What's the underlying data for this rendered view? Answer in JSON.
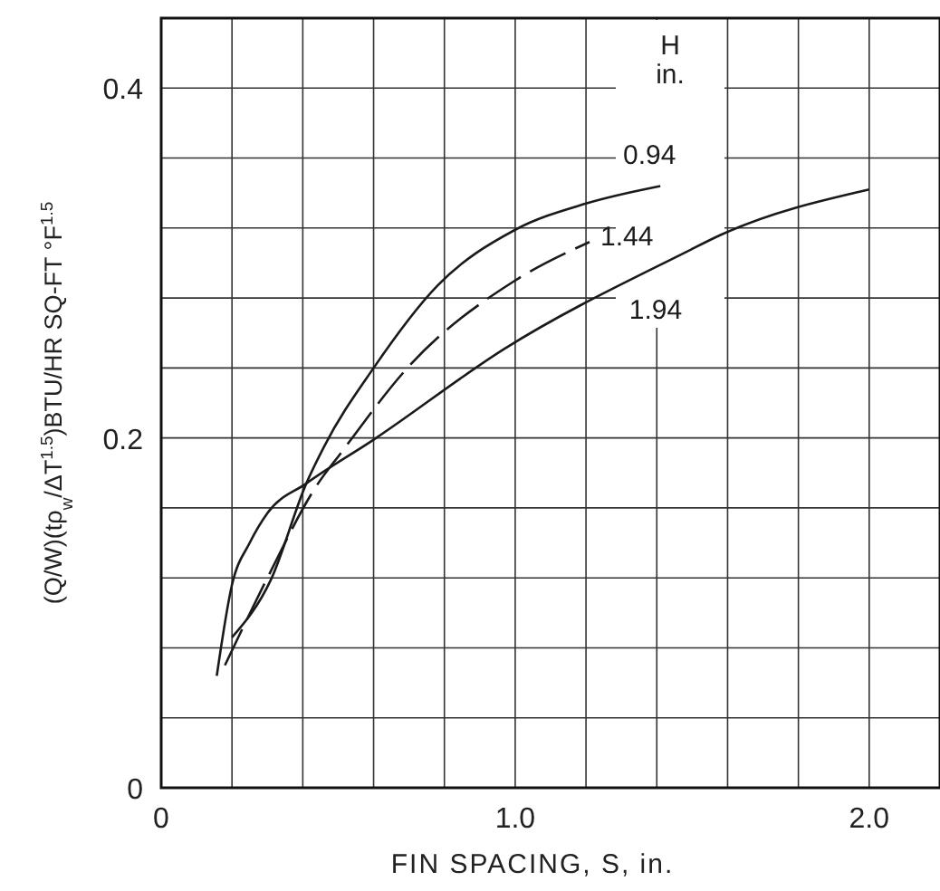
{
  "chart_data": {
    "type": "line",
    "xlabel": "FIN SPACING, S, in.",
    "ylabel": "(Q/W)(tρ$_{w}$/ΔT$^{1.5}$)BTU/HR SQ-FT °F$^{1.5}$",
    "legend_title": "H in.",
    "legend": "top right",
    "grid": true,
    "line_style": "solid",
    "marker": "none",
    "xlim": [
      0,
      2.2
    ],
    "ylim": [
      0,
      0.44
    ],
    "xticks": [
      0,
      {
        "value": 0.2,
        "label": null
      },
      {
        "value": 0.4,
        "label": null
      },
      {
        "value": 0.6,
        "label": null
      },
      {
        "value": 0.8,
        "label": null
      },
      {
        "value": 1.0,
        "label": "1.0"
      },
      {
        "value": 1.2,
        "label": null
      },
      {
        "value": 1.4,
        "label": null
      },
      {
        "value": 1.6,
        "label": null
      },
      {
        "value": 1.8,
        "label": null
      },
      {
        "value": 2.0,
        "label": "2.0"
      },
      {
        "value": 2.2,
        "label": null
      }
    ],
    "yticks": [
      0,
      {
        "value": 0.04,
        "label": null
      },
      {
        "value": 0.08,
        "label": null
      },
      {
        "value": 0.12,
        "label": null
      },
      {
        "value": 0.16,
        "label": null
      },
      0.2,
      {
        "value": 0.24,
        "label": null
      },
      {
        "value": 0.28,
        "label": null
      },
      {
        "value": 0.32,
        "label": null
      },
      {
        "value": 0.36,
        "label": null
      },
      0.4
    ],
    "series": [
      {
        "name": "0.94",
        "color": "#1a1a1a",
        "x": [
          0.2,
          0.31,
          0.41,
          0.46,
          0.6,
          0.78,
          1.0,
          1.2,
          1.41
        ],
        "values": [
          0.086,
          0.119,
          0.174,
          0.195,
          0.24,
          0.287,
          0.319,
          0.334,
          0.344
        ]
      },
      {
        "name": "1.44",
        "color": "#1a1a1a",
        "line_style": "dashed",
        "x": [
          0.18,
          0.3,
          0.44,
          0.51,
          0.7,
          1.0,
          1.21
        ],
        "values": [
          0.07,
          0.12,
          0.173,
          0.192,
          0.241,
          0.29,
          0.312
        ]
      },
      {
        "name": "1.94",
        "color": "#1a1a1a",
        "x": [
          0.157,
          0.2,
          0.25,
          0.3,
          0.41,
          0.6,
          0.97,
          1.48,
          1.58,
          2.0
        ],
        "values": [
          0.064,
          0.116,
          0.14,
          0.157,
          0.174,
          0.199,
          0.251,
          0.306,
          0.316,
          0.342
        ]
      }
    ]
  }
}
